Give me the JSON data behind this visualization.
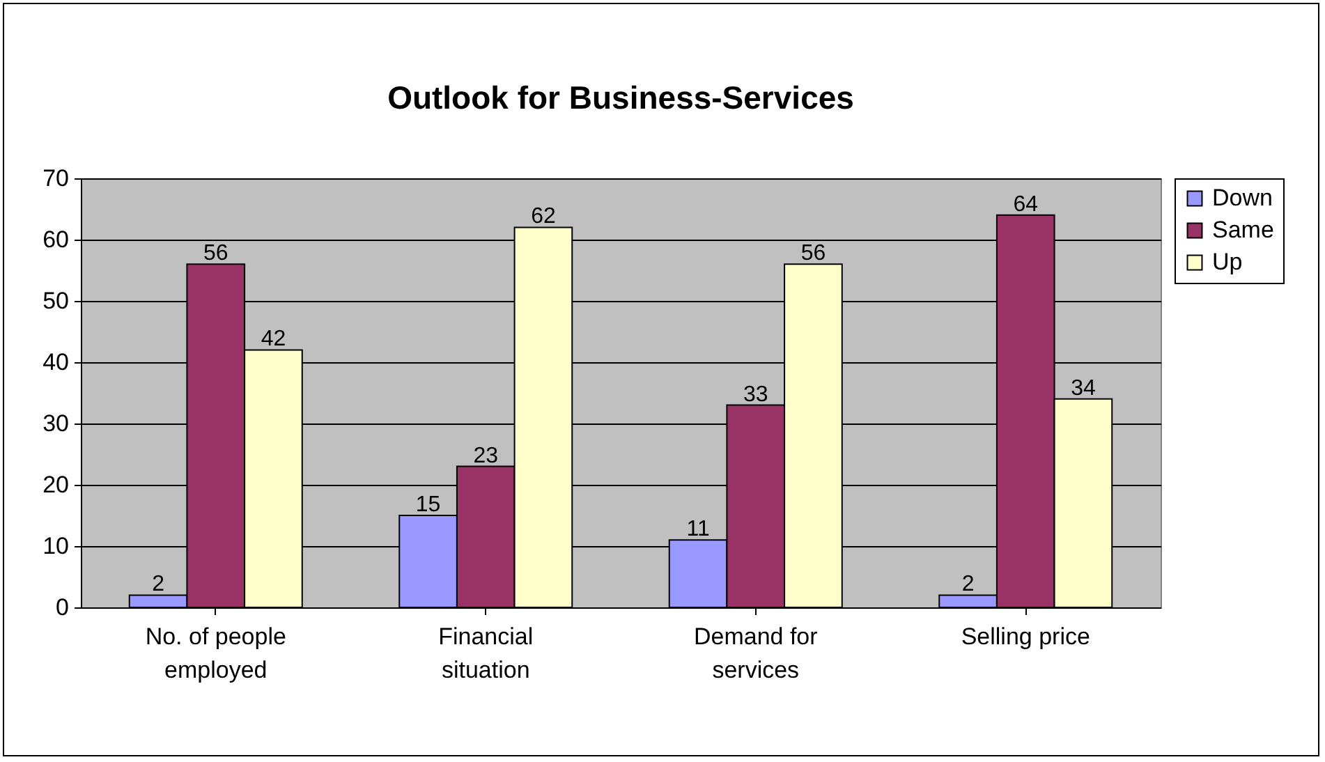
{
  "chart_data": {
    "type": "bar",
    "title": "Outlook for Business-Services",
    "categories": [
      "No. of people employed",
      "Financial situation",
      "Demand for services",
      "Selling price"
    ],
    "series": [
      {
        "name": "Down",
        "color": "#9999ff",
        "values": [
          2,
          15,
          11,
          2
        ]
      },
      {
        "name": "Same",
        "color": "#993366",
        "values": [
          56,
          23,
          33,
          64
        ]
      },
      {
        "name": "Up",
        "color": "#ffffcc",
        "values": [
          42,
          62,
          56,
          34
        ]
      }
    ],
    "ylim": [
      0,
      70
    ],
    "yticks": [
      0,
      10,
      20,
      30,
      40,
      50,
      60,
      70
    ],
    "grid": "y",
    "legend": "right",
    "data_labels": true
  }
}
